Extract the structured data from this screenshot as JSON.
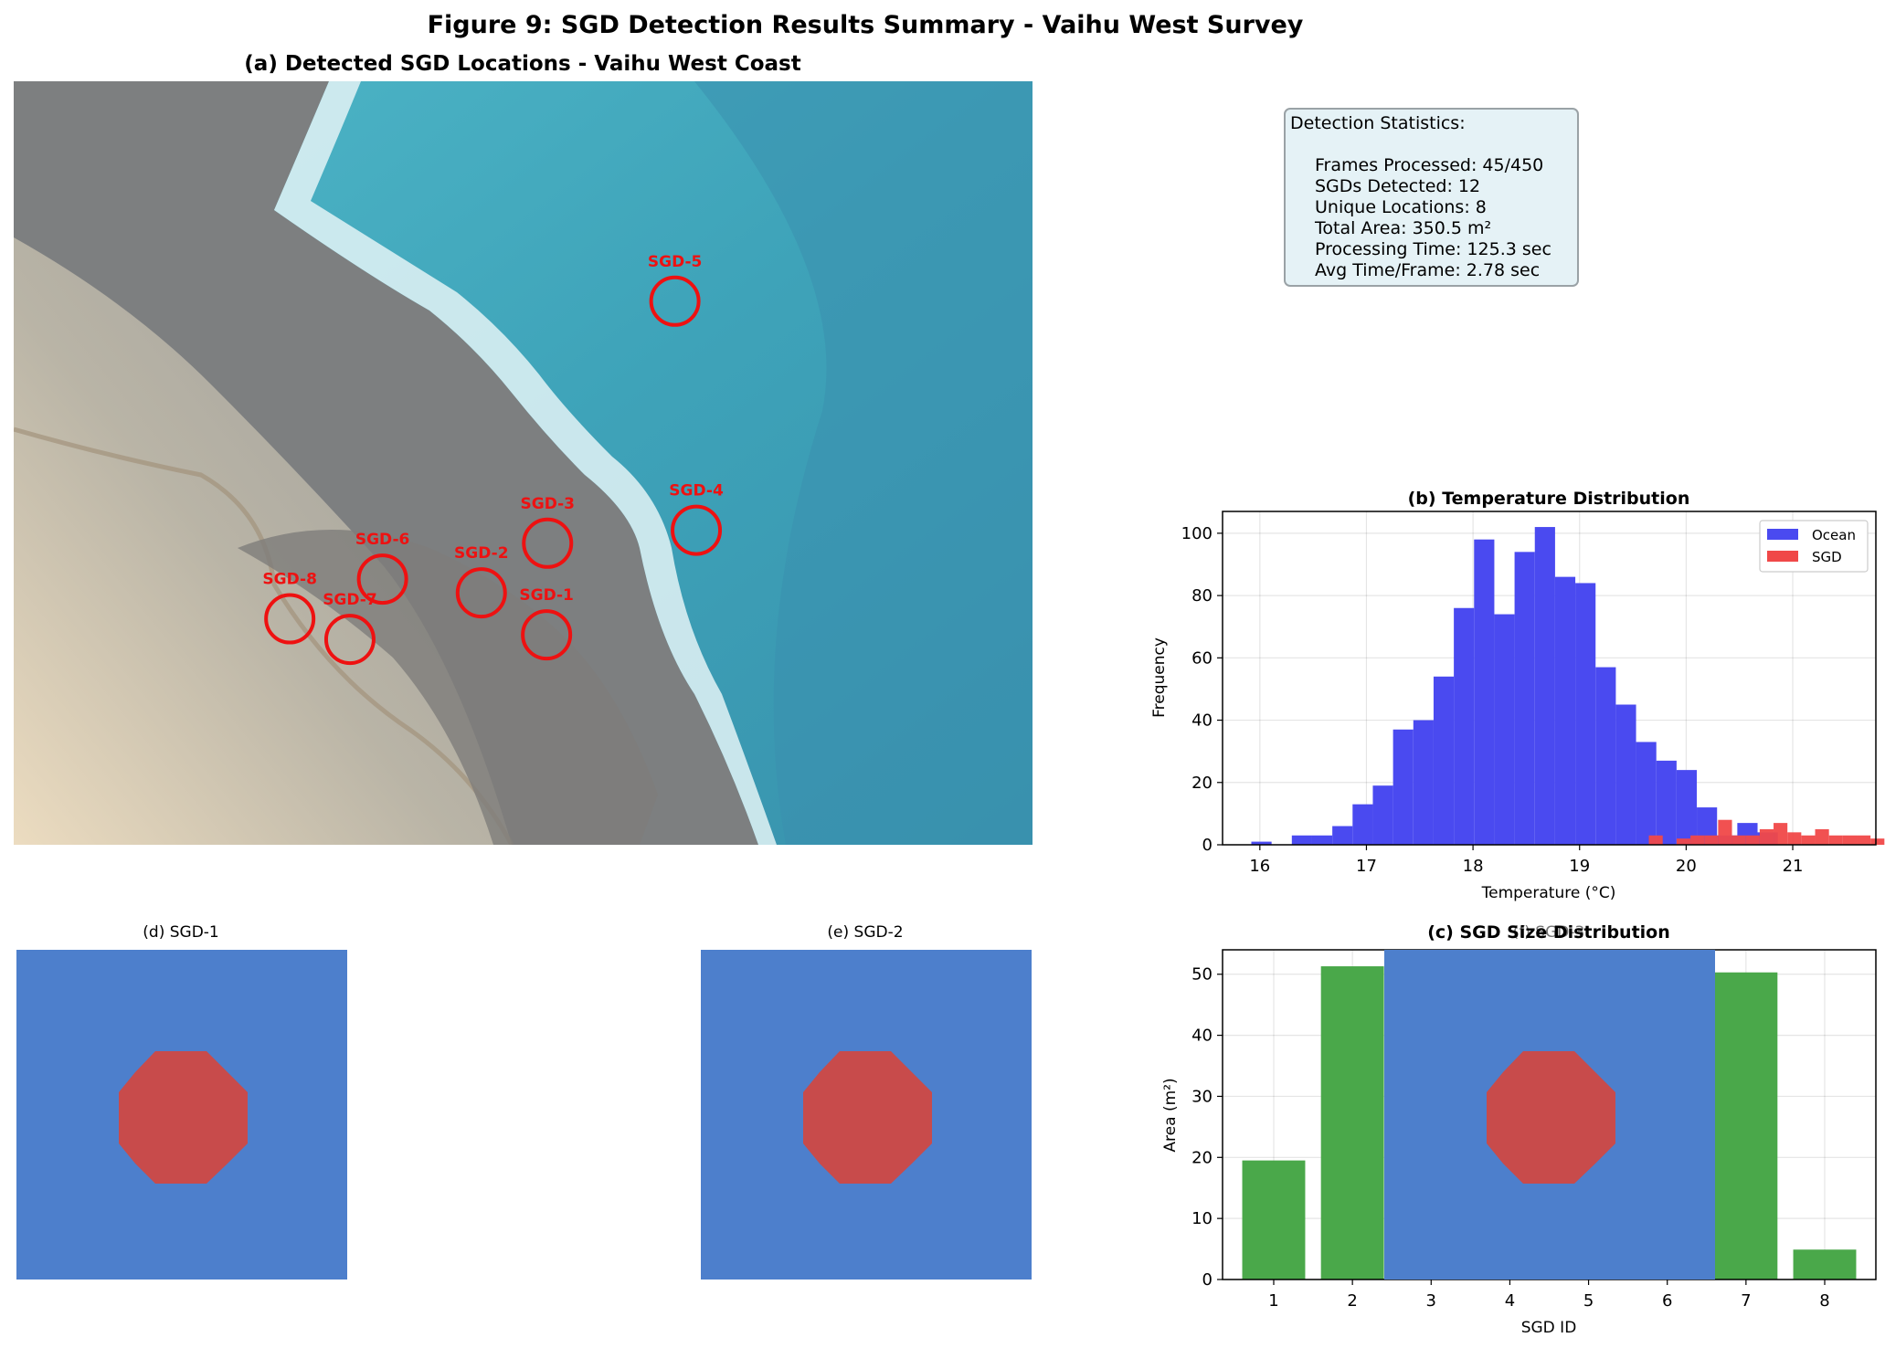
{
  "figure": {
    "title": "Figure 9: SGD Detection Results Summary - Vaihu West Survey"
  },
  "panel_a": {
    "title": "(a) Detected SGD Locations - Vaihu West Coast",
    "marker_color": "#ee1111",
    "markers": [
      {
        "label": "SGD-1",
        "x": 0.523,
        "y": 0.725
      },
      {
        "label": "SGD-2",
        "x": 0.459,
        "y": 0.67
      },
      {
        "label": "SGD-3",
        "x": 0.524,
        "y": 0.605
      },
      {
        "label": "SGD-4",
        "x": 0.67,
        "y": 0.588
      },
      {
        "label": "SGD-5",
        "x": 0.649,
        "y": 0.288
      },
      {
        "label": "SGD-6",
        "x": 0.362,
        "y": 0.652
      },
      {
        "label": "SGD-7",
        "x": 0.33,
        "y": 0.731
      },
      {
        "label": "SGD-8",
        "x": 0.271,
        "y": 0.704
      }
    ]
  },
  "stats": {
    "heading": "Detection Statistics:",
    "lines": [
      "Frames Processed: 45/450",
      "SGDs Detected: 12",
      "Unique Locations: 8",
      "Total Area: 350.5 m²",
      "Processing Time: 125.3 sec",
      "Avg Time/Frame: 2.78 sec"
    ]
  },
  "colors": {
    "ocean": "#4a4af0",
    "sgd": "#f04848",
    "bars": "#4aa84a",
    "thumb_bg": "#4d7fcc",
    "thumb_blob": "#c84b4b"
  },
  "chart_data": [
    {
      "type": "bar",
      "title": "(b) Temperature Distribution",
      "xlabel": "Temperature (°C)",
      "ylabel": "Frequency",
      "xlim": [
        15.65,
        21.78
      ],
      "ylim": [
        0,
        107
      ],
      "xticks": [
        16,
        17,
        18,
        19,
        20,
        21
      ],
      "yticks": [
        0,
        20,
        40,
        60,
        80,
        100
      ],
      "grid": true,
      "legend_position": "top-right",
      "series": [
        {
          "name": "Ocean",
          "bin_start": 15.92,
          "bin_width": 0.19,
          "values": [
            1,
            0,
            3,
            3,
            6,
            13,
            19,
            37,
            40,
            54,
            76,
            98,
            74,
            94,
            102,
            86,
            84,
            57,
            45,
            33,
            27,
            24,
            12,
            3,
            7,
            4
          ]
        },
        {
          "name": "SGD",
          "bin_start": 19.65,
          "bin_width": 0.13,
          "values": [
            3,
            0,
            2,
            3,
            3,
            8,
            3,
            3,
            5,
            7,
            4,
            3,
            5,
            3,
            3,
            3,
            2
          ]
        }
      ]
    },
    {
      "type": "bar",
      "title": "(c) SGD Size Distribution",
      "xlabel": "SGD ID",
      "ylabel": "Area (m²)",
      "categories": [
        "1",
        "2",
        "3",
        "4",
        "5",
        "6",
        "7",
        "8"
      ],
      "values": [
        19.5,
        51.3,
        null,
        null,
        null,
        null,
        50.3,
        4.9
      ],
      "ylim": [
        0,
        54
      ],
      "yticks": [
        0,
        10,
        20,
        30,
        40,
        50
      ],
      "grid": true
    }
  ],
  "thumbnails": [
    {
      "title": "(d) SGD-1"
    },
    {
      "title": "(e) SGD-2"
    },
    {
      "title": "(f) SGD-3"
    }
  ]
}
